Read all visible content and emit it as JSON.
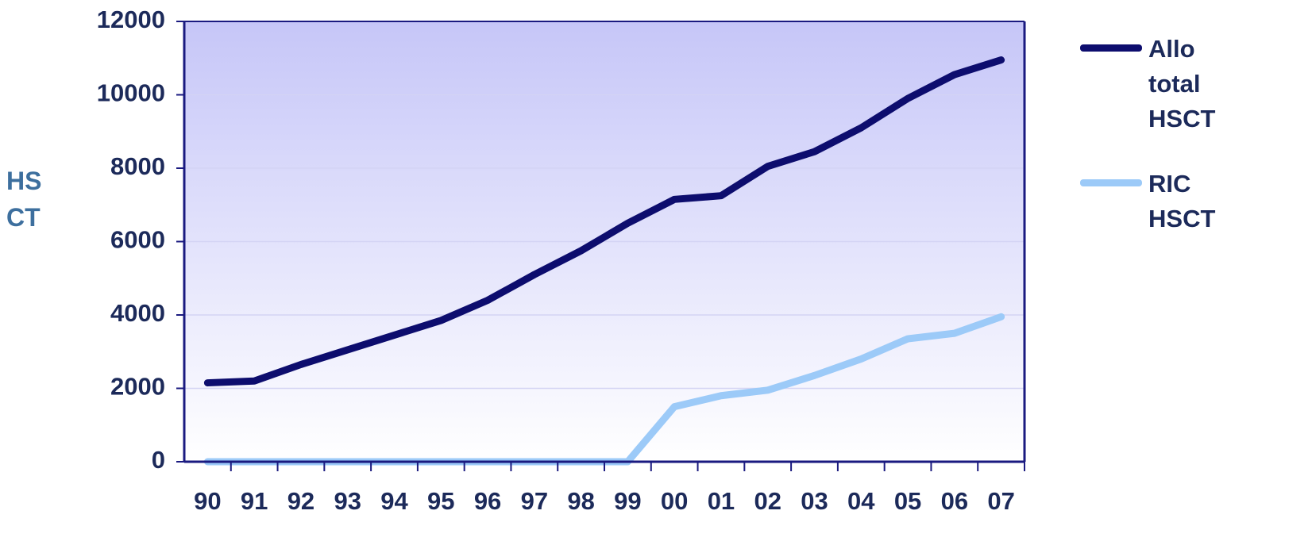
{
  "chart_data": {
    "type": "line",
    "y_label": "HSCT",
    "categories": [
      "90",
      "91",
      "92",
      "93",
      "94",
      "95",
      "96",
      "97",
      "98",
      "99",
      "00",
      "01",
      "02",
      "03",
      "04",
      "05",
      "06",
      "07"
    ],
    "series": [
      {
        "name": "Allo total HSCT",
        "color": "#0d0d6e",
        "values": [
          2150,
          2200,
          2650,
          3050,
          3450,
          3850,
          4400,
          5100,
          5750,
          6500,
          7150,
          7250,
          8050,
          8450,
          9100,
          9900,
          10550,
          10950
        ]
      },
      {
        "name": "RIC HSCT",
        "color": "#9ccaf8",
        "values": [
          0,
          0,
          0,
          0,
          0,
          0,
          0,
          0,
          0,
          0,
          1500,
          1800,
          1950,
          2350,
          2800,
          3350,
          3500,
          3950
        ]
      }
    ],
    "ylim": [
      0,
      12000
    ],
    "yticks": [
      0,
      2000,
      4000,
      6000,
      8000,
      10000,
      12000
    ],
    "grid": true
  }
}
